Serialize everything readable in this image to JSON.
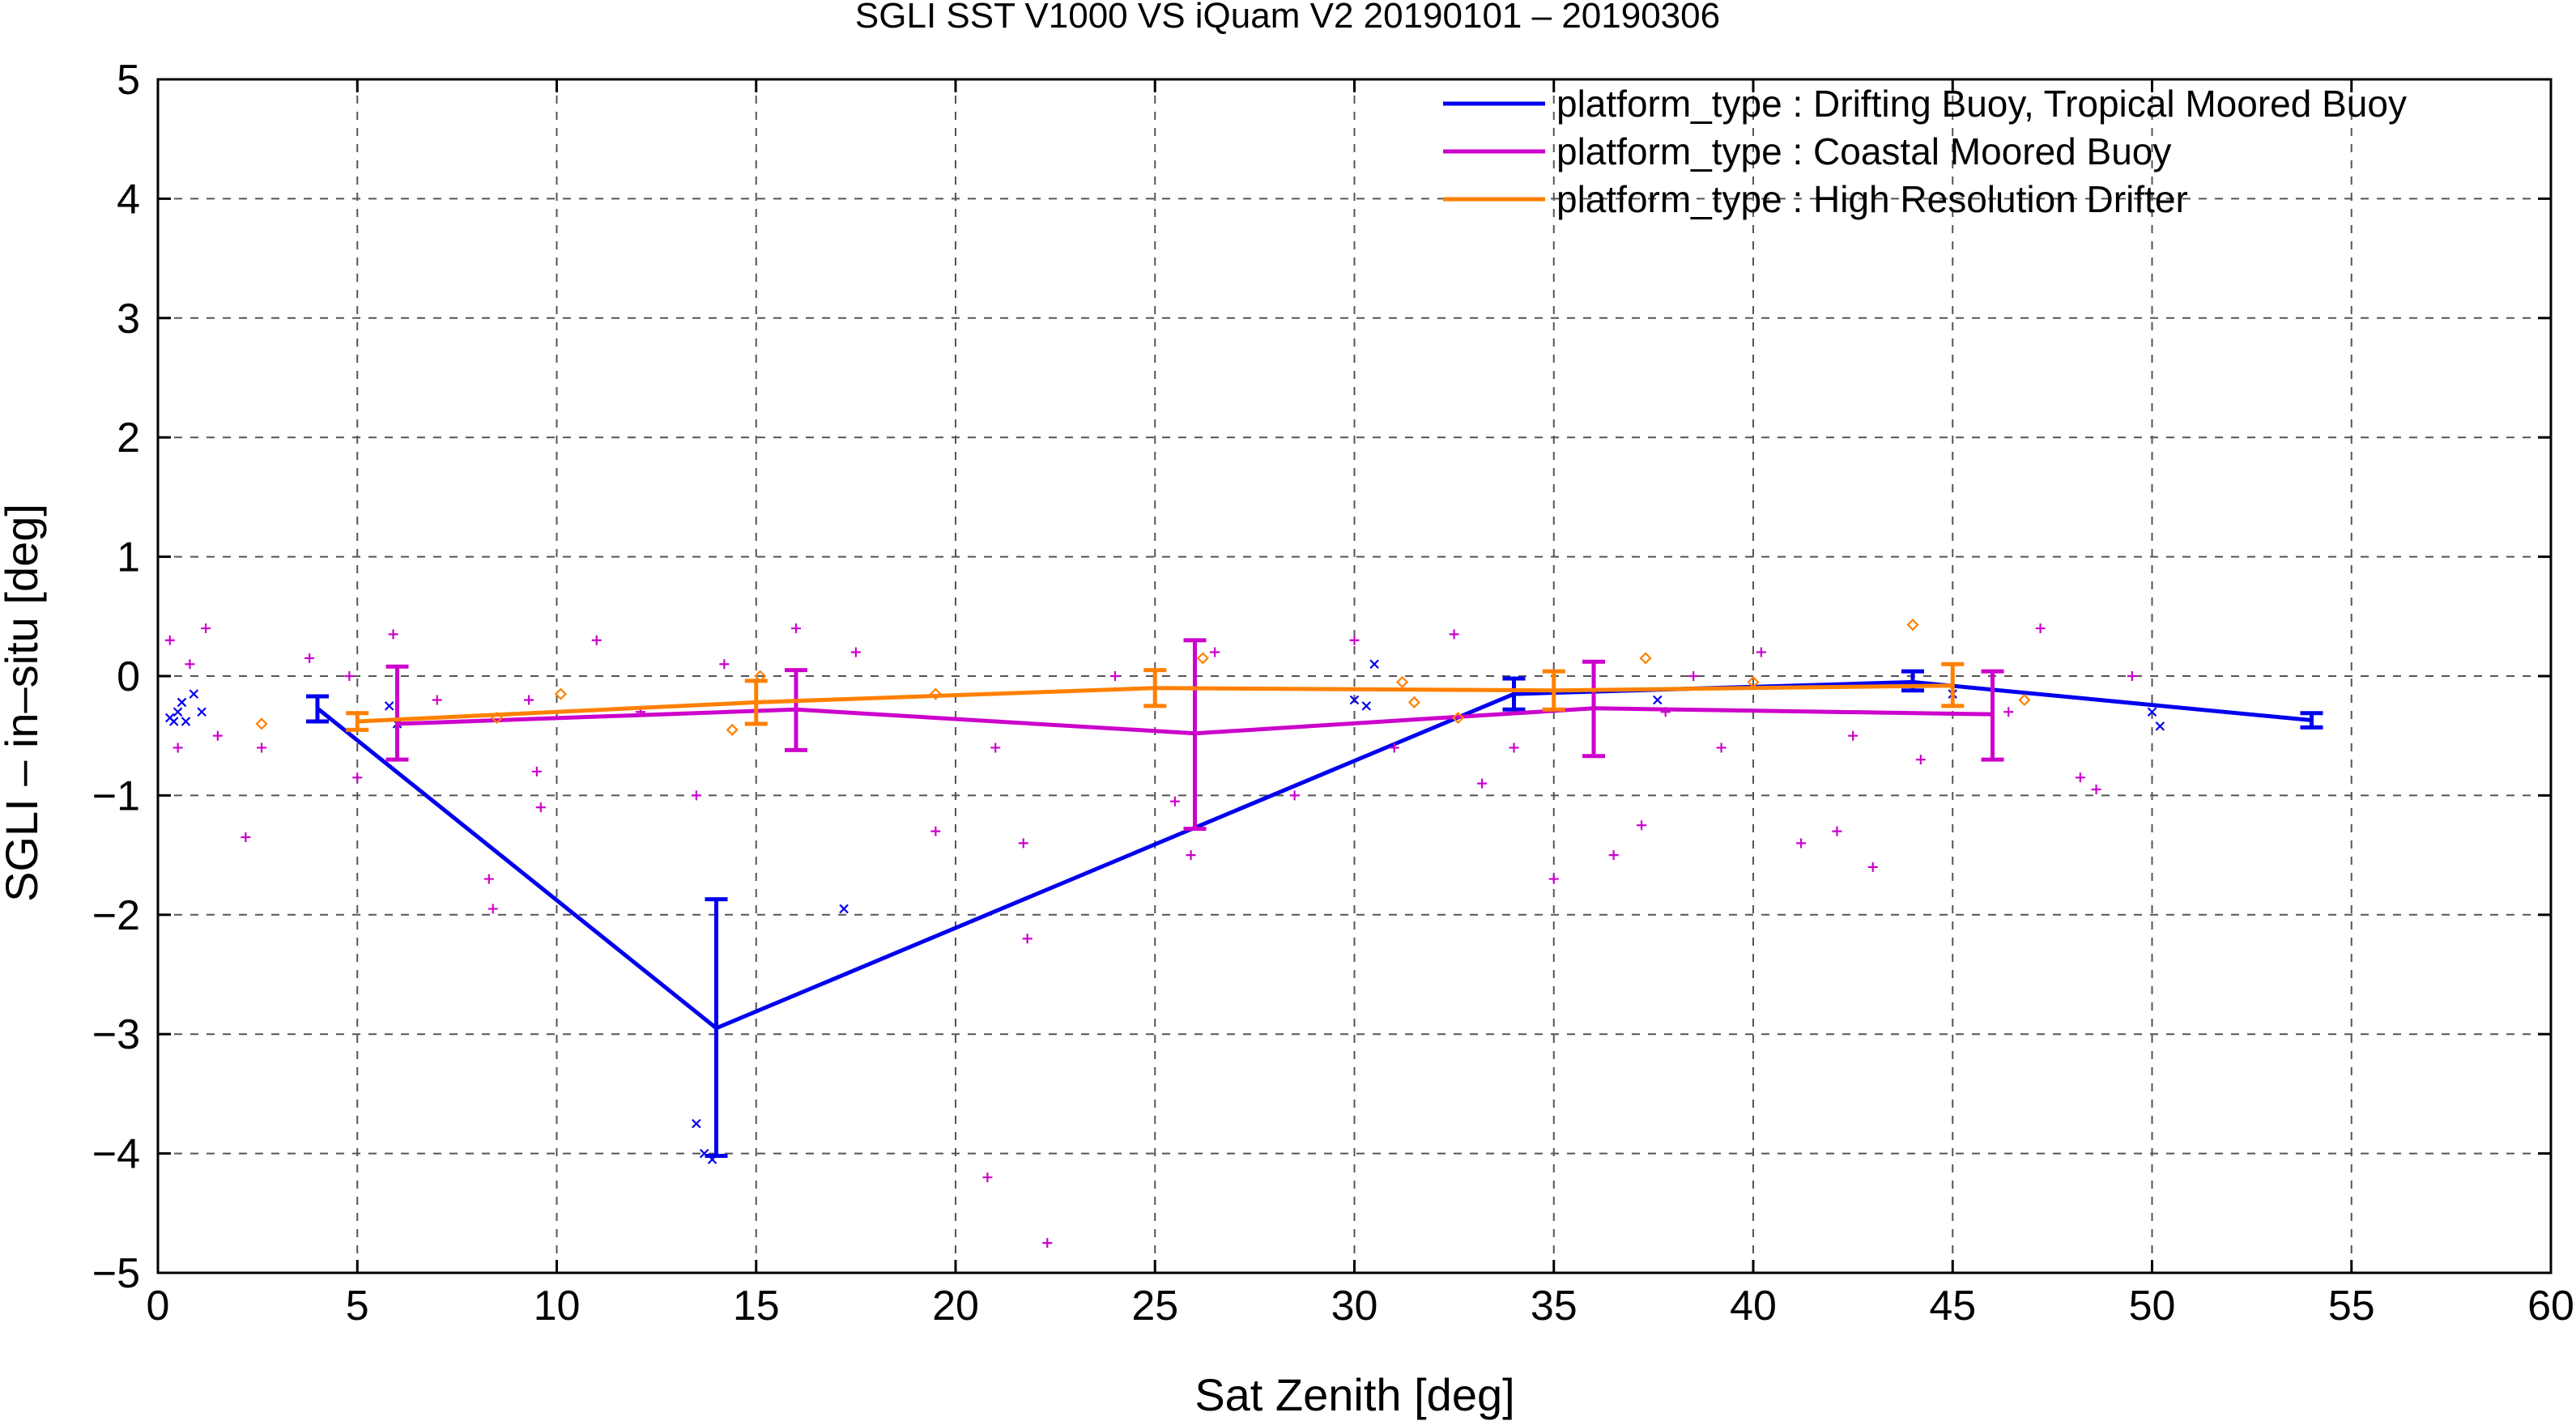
{
  "chart_data": {
    "type": "scatter",
    "title": "SGLI SST V1000 VS iQuam V2 20190101 – 20190306",
    "xlabel": "Sat Zenith [deg]",
    "ylabel": "SGLI – in–situ [deg]",
    "xlim": [
      0,
      60
    ],
    "ylim": [
      -5,
      5
    ],
    "x_ticks": [
      "0",
      "5",
      "10",
      "15",
      "20",
      "25",
      "30",
      "35",
      "40",
      "45",
      "50",
      "55",
      "60"
    ],
    "y_ticks": [
      "5",
      "4",
      "3",
      "2",
      "1",
      "0",
      "−1",
      "−2",
      "−3",
      "−4",
      "−5"
    ],
    "grid": true,
    "legend_position": "top-right",
    "series": [
      {
        "name": "platform_type : Drifting Buoy, Tropical Moored Buoy",
        "color": "#0000ee",
        "marker": "x",
        "line": [
          [
            4,
            -0.27
          ],
          [
            14,
            -2.95
          ],
          [
            34,
            -0.15
          ],
          [
            44,
            -0.05
          ],
          [
            54,
            -0.37
          ]
        ],
        "errorbars": [
          [
            4,
            -0.38,
            -0.17
          ],
          [
            14,
            -4.02,
            -1.87
          ],
          [
            34,
            -0.28,
            -0.02
          ],
          [
            44,
            -0.12,
            0.04
          ],
          [
            54,
            -0.43,
            -0.31
          ]
        ],
        "points": [
          [
            0.3,
            -0.35
          ],
          [
            0.4,
            -0.38
          ],
          [
            0.5,
            -0.3
          ],
          [
            0.6,
            -0.22
          ],
          [
            0.7,
            -0.38
          ],
          [
            0.9,
            -0.15
          ],
          [
            1.1,
            -0.3
          ],
          [
            5.8,
            -0.25
          ],
          [
            6.0,
            -0.4
          ],
          [
            13.5,
            -3.75
          ],
          [
            13.7,
            -4.0
          ],
          [
            13.9,
            -4.05
          ],
          [
            17.2,
            -1.95
          ],
          [
            30.0,
            -0.2
          ],
          [
            30.3,
            -0.25
          ],
          [
            30.5,
            0.1
          ],
          [
            37.6,
            -0.2
          ],
          [
            45.0,
            -0.15
          ],
          [
            50.0,
            -0.3
          ],
          [
            50.2,
            -0.42
          ]
        ]
      },
      {
        "name": "platform_type : Coastal Moored Buoy",
        "color": "#cc00cc",
        "marker": "+",
        "line": [
          [
            6,
            -0.4
          ],
          [
            16,
            -0.28
          ],
          [
            26,
            -0.48
          ],
          [
            36,
            -0.27
          ],
          [
            46,
            -0.32
          ]
        ],
        "errorbars": [
          [
            6,
            -0.7,
            0.08
          ],
          [
            16,
            -0.62,
            0.05
          ],
          [
            26,
            -1.28,
            0.3
          ],
          [
            36,
            -0.67,
            0.12
          ],
          [
            46,
            -0.7,
            0.04
          ]
        ],
        "points": [
          [
            0.3,
            0.3
          ],
          [
            0.5,
            -0.6
          ],
          [
            0.8,
            0.1
          ],
          [
            1.2,
            0.4
          ],
          [
            1.5,
            -0.5
          ],
          [
            2.2,
            -1.35
          ],
          [
            2.6,
            -0.6
          ],
          [
            3.8,
            0.15
          ],
          [
            4.8,
            0.0
          ],
          [
            5.0,
            -0.85
          ],
          [
            5.9,
            0.35
          ],
          [
            7.0,
            -0.2
          ],
          [
            8.3,
            -1.7
          ],
          [
            8.4,
            -1.95
          ],
          [
            9.3,
            -0.2
          ],
          [
            9.5,
            -0.8
          ],
          [
            9.6,
            -1.1
          ],
          [
            11.0,
            0.3
          ],
          [
            12.1,
            -0.3
          ],
          [
            13.5,
            -1.0
          ],
          [
            14.2,
            0.1
          ],
          [
            16.0,
            0.4
          ],
          [
            17.5,
            0.2
          ],
          [
            19.5,
            -1.3
          ],
          [
            21.0,
            -0.6
          ],
          [
            21.7,
            -1.4
          ],
          [
            21.8,
            -2.2
          ],
          [
            20.8,
            -4.2
          ],
          [
            22.3,
            -4.75
          ],
          [
            24.0,
            0.0
          ],
          [
            25.5,
            -1.05
          ],
          [
            25.9,
            -1.5
          ],
          [
            26.5,
            0.2
          ],
          [
            28.5,
            -1.0
          ],
          [
            30.0,
            0.3
          ],
          [
            31.0,
            -0.6
          ],
          [
            32.5,
            0.35
          ],
          [
            33.2,
            -0.9
          ],
          [
            34.0,
            -0.6
          ],
          [
            35.0,
            -1.7
          ],
          [
            36.5,
            -1.5
          ],
          [
            37.2,
            -1.25
          ],
          [
            37.8,
            -0.3
          ],
          [
            38.5,
            0.0
          ],
          [
            39.2,
            -0.6
          ],
          [
            40.2,
            0.2
          ],
          [
            41.2,
            -1.4
          ],
          [
            42.1,
            -1.3
          ],
          [
            42.5,
            -0.5
          ],
          [
            43.0,
            -1.6
          ],
          [
            44.2,
            -0.7
          ],
          [
            46.4,
            -0.3
          ],
          [
            47.2,
            0.4
          ],
          [
            48.2,
            -0.85
          ],
          [
            48.6,
            -0.95
          ],
          [
            49.5,
            0.0
          ]
        ]
      },
      {
        "name": "platform_type : High Resolution Drifter",
        "color": "#ff8000",
        "marker": "diamond",
        "line": [
          [
            5,
            -0.38
          ],
          [
            15,
            -0.22
          ],
          [
            25,
            -0.1
          ],
          [
            35,
            -0.12
          ],
          [
            45,
            -0.08
          ]
        ],
        "errorbars": [
          [
            5,
            -0.45,
            -0.31
          ],
          [
            15,
            -0.4,
            -0.04
          ],
          [
            25,
            -0.25,
            0.05
          ],
          [
            35,
            -0.28,
            0.04
          ],
          [
            45,
            -0.25,
            0.1
          ]
        ],
        "points": [
          [
            2.6,
            -0.4
          ],
          [
            8.5,
            -0.35
          ],
          [
            10.1,
            -0.15
          ],
          [
            14.4,
            -0.45
          ],
          [
            15.1,
            0.0
          ],
          [
            19.5,
            -0.15
          ],
          [
            26.2,
            0.15
          ],
          [
            31.2,
            -0.05
          ],
          [
            31.5,
            -0.22
          ],
          [
            32.6,
            -0.35
          ],
          [
            37.3,
            0.15
          ],
          [
            40.0,
            -0.05
          ],
          [
            44.0,
            0.43
          ],
          [
            46.8,
            -0.2
          ]
        ]
      }
    ]
  }
}
